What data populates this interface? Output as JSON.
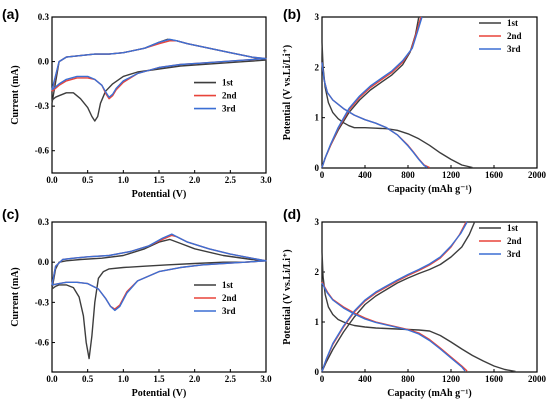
{
  "colors": {
    "1st": "#3d3d3d",
    "2nd": "#e8443a",
    "3rd": "#3b6fd4"
  },
  "chart_data": [
    {
      "panel": "(a)",
      "type": "line",
      "xlabel": "Potential (V)",
      "ylabel": "Current (mA)",
      "xlim": [
        0.0,
        3.0
      ],
      "ylim": [
        -0.75,
        0.3
      ],
      "xticks": [
        "0.0",
        "0.5",
        "1.0",
        "1.5",
        "2.0",
        "2.5",
        "3.0"
      ],
      "yticks": [
        "0.3",
        "0.0",
        "-0.3",
        "-0.6"
      ],
      "legend": "right-center",
      "series": [
        {
          "name": "1st",
          "x": [
            0.0,
            0.05,
            0.1,
            0.2,
            0.3,
            0.4,
            0.5,
            0.56,
            0.6,
            0.64,
            0.68,
            0.75,
            0.85,
            1.0,
            1.2,
            1.5,
            1.8,
            2.1,
            2.4,
            2.7,
            3.0,
            2.8,
            2.5,
            2.2,
            1.9,
            1.75,
            1.62,
            1.5,
            1.3,
            1.0,
            0.8,
            0.6,
            0.4,
            0.2,
            0.1,
            0.0
          ],
          "y": [
            -0.26,
            -0.24,
            -0.23,
            -0.21,
            -0.21,
            -0.25,
            -0.31,
            -0.37,
            -0.4,
            -0.37,
            -0.28,
            -0.2,
            -0.15,
            -0.1,
            -0.07,
            -0.05,
            -0.03,
            -0.02,
            -0.01,
            0.0,
            0.01,
            0.03,
            0.06,
            0.09,
            0.12,
            0.14,
            0.15,
            0.13,
            0.09,
            0.06,
            0.05,
            0.05,
            0.04,
            0.03,
            0.0,
            -0.28
          ]
        },
        {
          "name": "2nd",
          "x": [
            0.0,
            0.1,
            0.2,
            0.35,
            0.5,
            0.6,
            0.7,
            0.76,
            0.8,
            0.85,
            0.9,
            1.0,
            1.2,
            1.5,
            1.8,
            2.1,
            2.4,
            2.7,
            3.0,
            2.8,
            2.5,
            2.2,
            1.9,
            1.75,
            1.65,
            1.5,
            1.3,
            1.0,
            0.8,
            0.6,
            0.4,
            0.2,
            0.1,
            0.0
          ],
          "y": [
            -0.2,
            -0.16,
            -0.13,
            -0.11,
            -0.11,
            -0.12,
            -0.16,
            -0.22,
            -0.25,
            -0.23,
            -0.19,
            -0.14,
            -0.08,
            -0.04,
            -0.02,
            -0.01,
            0.0,
            0.01,
            0.02,
            0.03,
            0.06,
            0.09,
            0.12,
            0.14,
            0.14,
            0.12,
            0.09,
            0.06,
            0.05,
            0.05,
            0.04,
            0.03,
            0.0,
            -0.2
          ]
        },
        {
          "name": "3rd",
          "x": [
            0.0,
            0.1,
            0.2,
            0.35,
            0.5,
            0.6,
            0.7,
            0.76,
            0.8,
            0.85,
            0.9,
            1.0,
            1.2,
            1.5,
            1.8,
            2.1,
            2.4,
            2.7,
            3.0,
            2.8,
            2.5,
            2.2,
            1.9,
            1.75,
            1.65,
            1.5,
            1.3,
            1.0,
            0.8,
            0.6,
            0.4,
            0.2,
            0.1,
            0.0
          ],
          "y": [
            -0.19,
            -0.15,
            -0.12,
            -0.1,
            -0.1,
            -0.12,
            -0.16,
            -0.21,
            -0.24,
            -0.22,
            -0.18,
            -0.13,
            -0.08,
            -0.04,
            -0.02,
            -0.01,
            0.0,
            0.01,
            0.02,
            0.03,
            0.06,
            0.09,
            0.12,
            0.14,
            0.15,
            0.13,
            0.09,
            0.06,
            0.05,
            0.05,
            0.04,
            0.03,
            0.0,
            -0.19
          ]
        }
      ]
    },
    {
      "panel": "(b)",
      "type": "line",
      "xlabel": "Capacity (mAh g⁻¹)",
      "ylabel": "Potential (V vs.Li/Li⁺)",
      "xlim": [
        0,
        2000
      ],
      "ylim": [
        0,
        3
      ],
      "xticks": [
        "0",
        "400",
        "800",
        "1200",
        "1600",
        "2000"
      ],
      "yticks": [
        "0",
        "1",
        "2",
        "3"
      ],
      "legend": "top-right",
      "series": [
        {
          "name": "1st",
          "discharge": {
            "x": [
              0,
              10,
              30,
              60,
              100,
              150,
              200,
              250,
              300,
              400,
              500,
              600,
              700,
              800,
              900,
              1000,
              1100,
              1200,
              1300,
              1400
            ],
            "y": [
              2.5,
              2.0,
              1.6,
              1.3,
              1.1,
              0.98,
              0.9,
              0.84,
              0.8,
              0.8,
              0.79,
              0.78,
              0.75,
              0.68,
              0.58,
              0.45,
              0.3,
              0.17,
              0.06,
              0.01
            ]
          },
          "charge": {
            "x": [
              0,
              30,
              80,
              150,
              250,
              350,
              450,
              550,
              650,
              750,
              820,
              870,
              900
            ],
            "y": [
              0.01,
              0.2,
              0.45,
              0.75,
              1.1,
              1.35,
              1.55,
              1.7,
              1.85,
              2.05,
              2.3,
              2.65,
              3.0
            ]
          }
        },
        {
          "name": "2nd",
          "discharge": {
            "x": [
              0,
              20,
              50,
              100,
              200,
              300,
              400,
              500,
              600,
              700,
              800,
              850,
              900,
              950,
              1000
            ],
            "y": [
              2.1,
              1.75,
              1.5,
              1.35,
              1.18,
              1.05,
              0.96,
              0.89,
              0.8,
              0.66,
              0.45,
              0.32,
              0.18,
              0.06,
              0.01
            ]
          },
          "charge": {
            "x": [
              0,
              30,
              80,
              150,
              250,
              350,
              450,
              550,
              650,
              750,
              830,
              880,
              920
            ],
            "y": [
              0.01,
              0.2,
              0.45,
              0.78,
              1.15,
              1.4,
              1.6,
              1.75,
              1.9,
              2.1,
              2.35,
              2.7,
              3.0
            ]
          }
        },
        {
          "name": "3rd",
          "discharge": {
            "x": [
              0,
              20,
              50,
              100,
              200,
              300,
              400,
              500,
              600,
              700,
              800,
              850,
              900,
              950,
              980
            ],
            "y": [
              2.1,
              1.75,
              1.5,
              1.35,
              1.18,
              1.05,
              0.96,
              0.89,
              0.8,
              0.66,
              0.44,
              0.31,
              0.17,
              0.05,
              0.01
            ]
          },
          "charge": {
            "x": [
              0,
              30,
              80,
              150,
              250,
              350,
              450,
              550,
              650,
              750,
              840,
              890,
              930
            ],
            "y": [
              0.01,
              0.2,
              0.47,
              0.8,
              1.18,
              1.43,
              1.63,
              1.78,
              1.93,
              2.13,
              2.38,
              2.72,
              3.0
            ]
          }
        }
      ]
    },
    {
      "panel": "(c)",
      "type": "line",
      "xlabel": "Potential (V)",
      "ylabel": "Current (mA)",
      "xlim": [
        0.0,
        3.0
      ],
      "ylim": [
        -0.82,
        0.3
      ],
      "xticks": [
        "0.0",
        "0.5",
        "1.0",
        "1.5",
        "2.0",
        "2.5",
        "3.0"
      ],
      "yticks": [
        "0.3",
        "0.0",
        "-0.3",
        "-0.6"
      ],
      "legend": "right-center",
      "series": [
        {
          "name": "1st",
          "x": [
            0.0,
            0.05,
            0.1,
            0.2,
            0.3,
            0.38,
            0.44,
            0.48,
            0.52,
            0.56,
            0.6,
            0.65,
            0.72,
            0.8,
            1.0,
            1.3,
            1.6,
            2.0,
            2.4,
            2.7,
            3.0,
            2.8,
            2.4,
            2.0,
            1.8,
            1.65,
            1.5,
            1.3,
            1.0,
            0.7,
            0.4,
            0.2,
            0.1,
            0.05,
            0.0
          ],
          "y": [
            -0.2,
            -0.18,
            -0.17,
            -0.17,
            -0.19,
            -0.26,
            -0.4,
            -0.6,
            -0.72,
            -0.55,
            -0.3,
            -0.12,
            -0.07,
            -0.05,
            -0.04,
            -0.03,
            -0.02,
            -0.01,
            0.0,
            0.0,
            0.01,
            0.02,
            0.05,
            0.1,
            0.14,
            0.17,
            0.15,
            0.1,
            0.05,
            0.03,
            0.02,
            0.01,
            0.0,
            -0.05,
            -0.2
          ]
        },
        {
          "name": "2nd",
          "x": [
            0.0,
            0.1,
            0.2,
            0.35,
            0.5,
            0.65,
            0.75,
            0.82,
            0.88,
            0.95,
            1.05,
            1.2,
            1.5,
            1.8,
            2.1,
            2.4,
            2.7,
            3.0,
            2.8,
            2.5,
            2.2,
            1.9,
            1.75,
            1.68,
            1.55,
            1.35,
            1.1,
            0.8,
            0.5,
            0.3,
            0.15,
            0.05,
            0.0
          ],
          "y": [
            -0.17,
            -0.16,
            -0.15,
            -0.15,
            -0.16,
            -0.2,
            -0.27,
            -0.33,
            -0.35,
            -0.32,
            -0.22,
            -0.14,
            -0.07,
            -0.04,
            -0.02,
            -0.01,
            0.0,
            0.01,
            0.03,
            0.06,
            0.1,
            0.15,
            0.19,
            0.2,
            0.17,
            0.12,
            0.08,
            0.05,
            0.04,
            0.03,
            0.02,
            -0.03,
            -0.17
          ]
        },
        {
          "name": "3rd",
          "x": [
            0.0,
            0.1,
            0.2,
            0.35,
            0.5,
            0.65,
            0.75,
            0.82,
            0.88,
            0.95,
            1.05,
            1.2,
            1.5,
            1.8,
            2.1,
            2.4,
            2.7,
            3.0,
            2.8,
            2.5,
            2.2,
            1.9,
            1.75,
            1.68,
            1.55,
            1.35,
            1.1,
            0.8,
            0.5,
            0.3,
            0.15,
            0.05,
            0.0
          ],
          "y": [
            -0.17,
            -0.16,
            -0.15,
            -0.15,
            -0.16,
            -0.2,
            -0.27,
            -0.33,
            -0.36,
            -0.33,
            -0.23,
            -0.14,
            -0.07,
            -0.04,
            -0.02,
            -0.01,
            0.0,
            0.01,
            0.03,
            0.06,
            0.1,
            0.15,
            0.19,
            0.21,
            0.18,
            0.12,
            0.08,
            0.05,
            0.04,
            0.03,
            0.02,
            -0.03,
            -0.17
          ]
        }
      ]
    },
    {
      "panel": "(d)",
      "type": "line",
      "xlabel": "Capacity (mAh g⁻¹)",
      "ylabel": "Potential (V vs.Li/Li⁺)",
      "xlim": [
        0,
        2000
      ],
      "ylim": [
        0,
        3
      ],
      "xticks": [
        "0",
        "400",
        "800",
        "1200",
        "1600",
        "2000"
      ],
      "yticks": [
        "0",
        "1",
        "2",
        "3"
      ],
      "legend": "top-right",
      "series": [
        {
          "name": "1st",
          "discharge": {
            "x": [
              0,
              10,
              30,
              60,
              100,
              150,
              200,
              250,
              300,
              400,
              500,
              600,
              700,
              800,
              900,
              1000,
              1100,
              1200,
              1300,
              1400,
              1500,
              1600,
              1700,
              1800
            ],
            "y": [
              2.4,
              1.9,
              1.55,
              1.3,
              1.15,
              1.05,
              1.0,
              0.96,
              0.93,
              0.9,
              0.88,
              0.87,
              0.86,
              0.85,
              0.84,
              0.82,
              0.73,
              0.6,
              0.46,
              0.33,
              0.22,
              0.12,
              0.05,
              0.01
            ]
          },
          "charge": {
            "x": [
              0,
              40,
              100,
              200,
              300,
              400,
              500,
              600,
              700,
              800,
              900,
              1000,
              1100,
              1200,
              1300,
              1370,
              1420
            ],
            "y": [
              0.01,
              0.2,
              0.45,
              0.8,
              1.1,
              1.35,
              1.52,
              1.65,
              1.78,
              1.88,
              1.97,
              2.05,
              2.15,
              2.3,
              2.5,
              2.75,
              3.0
            ]
          }
        },
        {
          "name": "2nd",
          "discharge": {
            "x": [
              0,
              20,
              50,
              100,
              200,
              300,
              400,
              500,
              600,
              700,
              800,
              900,
              1000,
              1100,
              1200,
              1300,
              1350
            ],
            "y": [
              1.8,
              1.72,
              1.6,
              1.45,
              1.3,
              1.18,
              1.08,
              1.0,
              0.95,
              0.9,
              0.85,
              0.78,
              0.65,
              0.48,
              0.3,
              0.12,
              0.02
            ]
          },
          "charge": {
            "x": [
              0,
              40,
              100,
              200,
              300,
              400,
              500,
              600,
              700,
              800,
              900,
              1000,
              1100,
              1200,
              1280,
              1340
            ],
            "y": [
              0.01,
              0.25,
              0.55,
              0.9,
              1.2,
              1.42,
              1.58,
              1.7,
              1.82,
              1.93,
              2.03,
              2.14,
              2.28,
              2.5,
              2.75,
              3.0
            ]
          }
        },
        {
          "name": "3rd",
          "discharge": {
            "x": [
              0,
              20,
              50,
              100,
              200,
              300,
              400,
              500,
              600,
              700,
              800,
              900,
              1000,
              1100,
              1200,
              1300,
              1330
            ],
            "y": [
              1.78,
              1.7,
              1.58,
              1.44,
              1.28,
              1.16,
              1.06,
              0.99,
              0.94,
              0.89,
              0.84,
              0.76,
              0.63,
              0.46,
              0.28,
              0.1,
              0.02
            ]
          },
          "charge": {
            "x": [
              0,
              40,
              100,
              200,
              300,
              400,
              500,
              600,
              700,
              800,
              900,
              1000,
              1100,
              1200,
              1290,
              1350
            ],
            "y": [
              0.01,
              0.26,
              0.57,
              0.92,
              1.22,
              1.44,
              1.6,
              1.72,
              1.84,
              1.95,
              2.05,
              2.16,
              2.3,
              2.52,
              2.77,
              3.0
            ]
          }
        }
      ]
    }
  ]
}
